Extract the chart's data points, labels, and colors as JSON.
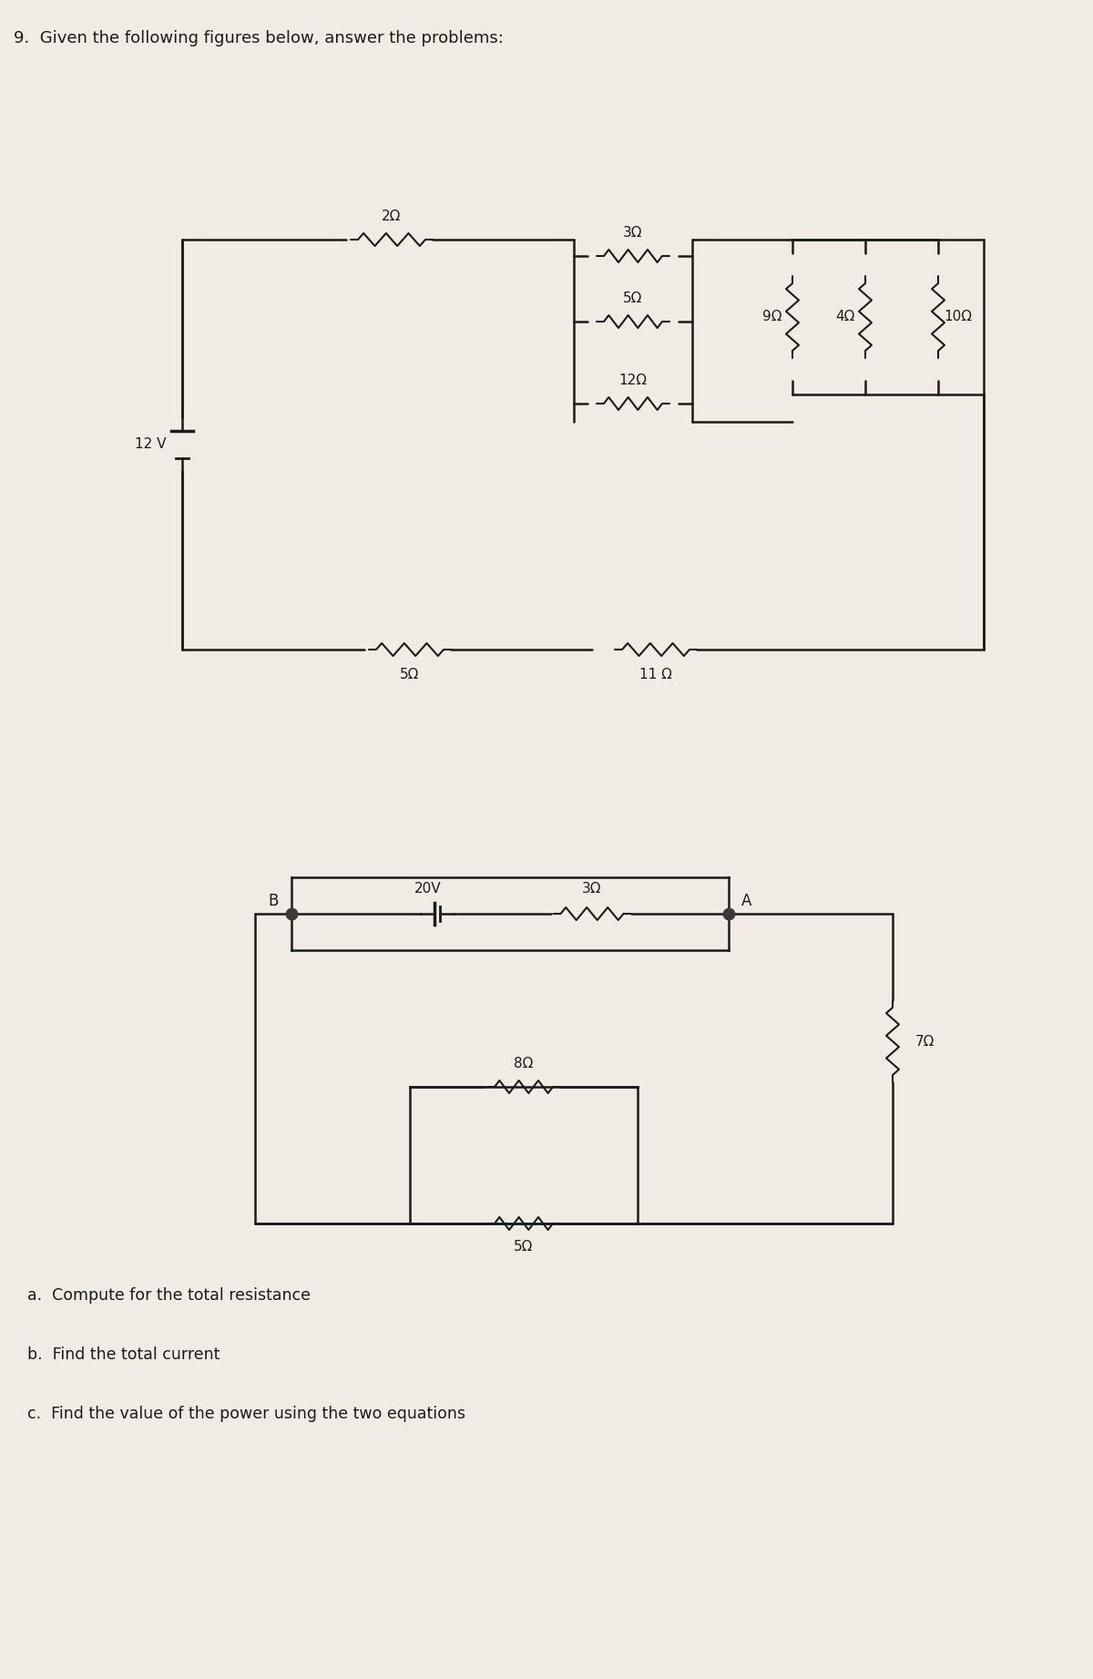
{
  "title": "9.  Given the following figures below, answer the problems:",
  "bg_color": "#f0ece4",
  "line_color": "#1a1a1a",
  "text_color": "#1a1a1a",
  "questions": [
    "a.  Compute for the total resistance",
    "b.  Find the total current",
    "c.  Find the value of the power using the two equations"
  ],
  "circuit1": {
    "voltage": "12 V",
    "resistors_top": [
      "2Ω",
      "3Ω",
      "5Ω",
      "12Ω"
    ],
    "resistors_bottom": [
      "5Ω",
      "11 Ω"
    ],
    "resistors_right": [
      "9Ω",
      "4Ω",
      "10Ω"
    ]
  },
  "circuit2": {
    "voltage": "20V",
    "resistors_top": [
      "3Ω"
    ],
    "resistors_right": [
      "7Ω"
    ],
    "resistors_bottom": [
      "8Ω",
      "5Ω"
    ],
    "label_A": "A",
    "label_B": "B"
  }
}
